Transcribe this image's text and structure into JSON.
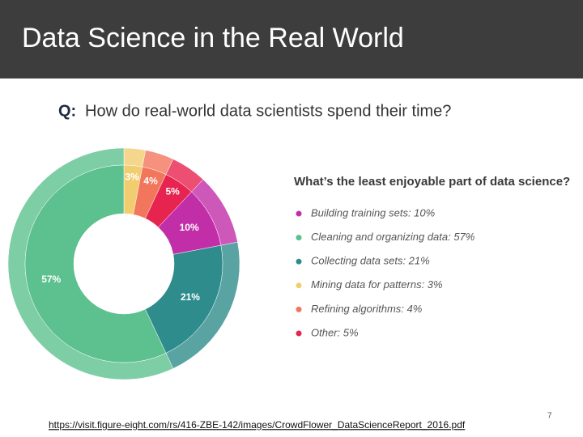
{
  "header": {
    "title": "Data Science in the Real World"
  },
  "question": {
    "label": "Q:",
    "text": "How do real-world data scientists spend their time?"
  },
  "chart_data": {
    "type": "donut",
    "values": [
      3,
      4,
      5,
      10,
      21,
      57
    ],
    "value_labels": [
      "3%",
      "4%",
      "5%",
      "10%",
      "21%",
      "57%"
    ],
    "colors": [
      "#f1cd6f",
      "#f2765b",
      "#e7234f",
      "#c22ea7",
      "#2f8c8c",
      "#5cc08f"
    ],
    "legend": {
      "title": "What’s the least enjoyable part of data science?",
      "entries": [
        {
          "label": "Building training sets: 10%",
          "color": "#c22ea7"
        },
        {
          "label": "Cleaning and organizing data: 57%",
          "color": "#5cc08f"
        },
        {
          "label": "Collecting data sets: 21%",
          "color": "#2f8c8c"
        },
        {
          "label": "Mining data for patterns: 3%",
          "color": "#f1cd6f"
        },
        {
          "label": "Refining algorithms: 4%",
          "color": "#f2765b"
        },
        {
          "label": "Other: 5%",
          "color": "#e7234f"
        }
      ]
    }
  },
  "footer": {
    "link": "https://visit.figure-eight.com/rs/416-ZBE-142/images/CrowdFlower_DataScienceReport_2016.pdf",
    "page": "7"
  }
}
